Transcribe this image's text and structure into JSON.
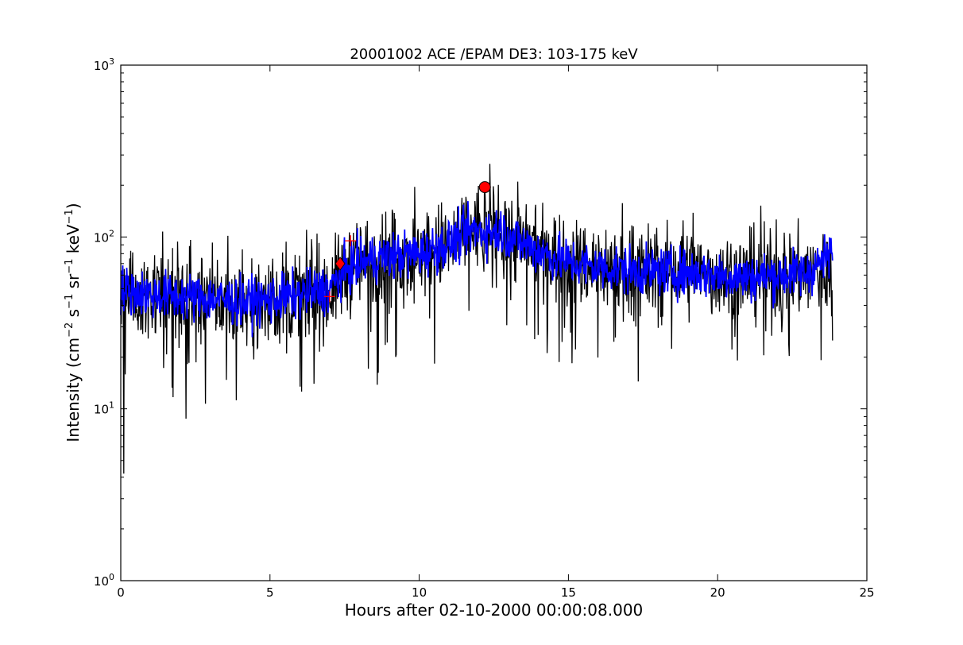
{
  "chart_data": {
    "type": "line",
    "title": "20001002 ACE /EPAM DE3: 103-175 keV",
    "xlabel": "Hours after 02-10-2000 00:00:08.000",
    "ylabel": {
      "prefix": "Intensity (cm",
      "sup1": "−2",
      "mid1": " s",
      "sup2": "−1",
      "mid2": " sr",
      "sup3": "−1",
      "mid3": " keV",
      "sup4": "−1",
      "suffix": ")"
    },
    "xlim": [
      0,
      25
    ],
    "ylim": [
      1,
      1000
    ],
    "yscale": "log",
    "grid": false,
    "xticks": [
      {
        "value": 0,
        "label": "0"
      },
      {
        "value": 5,
        "label": "5"
      },
      {
        "value": 10,
        "label": "10"
      },
      {
        "value": 15,
        "label": "15"
      },
      {
        "value": 20,
        "label": "20"
      },
      {
        "value": 25,
        "label": "25"
      }
    ],
    "yticks": [
      {
        "value": 1,
        "base": "10",
        "exp": "0"
      },
      {
        "value": 10,
        "base": "10",
        "exp": "1"
      },
      {
        "value": 100,
        "base": "10",
        "exp": "2"
      },
      {
        "value": 1000,
        "base": "10",
        "exp": "3"
      }
    ],
    "series": [
      {
        "role": "raw",
        "color": "#000000",
        "x_range": [
          0.0,
          23.85
        ],
        "profile": [
          [
            0.0,
            48
          ],
          [
            1.0,
            45
          ],
          [
            2.0,
            44
          ],
          [
            3.0,
            43
          ],
          [
            4.0,
            41
          ],
          [
            5.0,
            42
          ],
          [
            6.0,
            45
          ],
          [
            7.0,
            48
          ],
          [
            7.5,
            62
          ],
          [
            8.0,
            70
          ],
          [
            9.0,
            76
          ],
          [
            10.0,
            80
          ],
          [
            11.0,
            90
          ],
          [
            11.8,
            112
          ],
          [
            12.3,
            108
          ],
          [
            12.7,
            112
          ],
          [
            13.5,
            92
          ],
          [
            14.5,
            77
          ],
          [
            15.5,
            68
          ],
          [
            17.0,
            65
          ],
          [
            18.0,
            63
          ],
          [
            19.0,
            63
          ],
          [
            20.0,
            60
          ],
          [
            21.0,
            58
          ],
          [
            22.0,
            60
          ],
          [
            23.0,
            61
          ],
          [
            23.85,
            62
          ]
        ],
        "notable_points": [
          [
            0.1,
            4.2
          ],
          [
            0.3,
            75
          ],
          [
            12.2,
            195
          ],
          [
            13.3,
            210
          ],
          [
            23.85,
            25
          ]
        ]
      },
      {
        "role": "smoothed",
        "color": "#0000ff",
        "x_range": [
          0.0,
          23.85
        ],
        "profile": [
          [
            0.0,
            50
          ],
          [
            1.0,
            46
          ],
          [
            2.0,
            45
          ],
          [
            3.0,
            44
          ],
          [
            4.0,
            42
          ],
          [
            5.0,
            43
          ],
          [
            6.0,
            46
          ],
          [
            7.0,
            50
          ],
          [
            7.5,
            63
          ],
          [
            8.0,
            71
          ],
          [
            9.0,
            77
          ],
          [
            10.0,
            80
          ],
          [
            11.0,
            91
          ],
          [
            11.8,
            110
          ],
          [
            12.3,
            107
          ],
          [
            12.7,
            110
          ],
          [
            13.5,
            91
          ],
          [
            14.5,
            76
          ],
          [
            15.5,
            68
          ],
          [
            17.0,
            64
          ],
          [
            18.0,
            63
          ],
          [
            19.0,
            62
          ],
          [
            20.0,
            60
          ],
          [
            21.0,
            58
          ],
          [
            22.0,
            60
          ],
          [
            23.0,
            62
          ],
          [
            23.85,
            80
          ]
        ]
      }
    ],
    "markers": [
      {
        "shape": "plus",
        "color": "#ff0000",
        "x": 7.0,
        "y": 45
      },
      {
        "shape": "plus",
        "color": "#ff0000",
        "x": 7.7,
        "y": 95
      },
      {
        "shape": "diamond",
        "color": "#ff0000",
        "x": 7.35,
        "y": 70
      },
      {
        "shape": "circle",
        "color": "#ff0000",
        "x": 12.2,
        "y": 195
      }
    ]
  }
}
